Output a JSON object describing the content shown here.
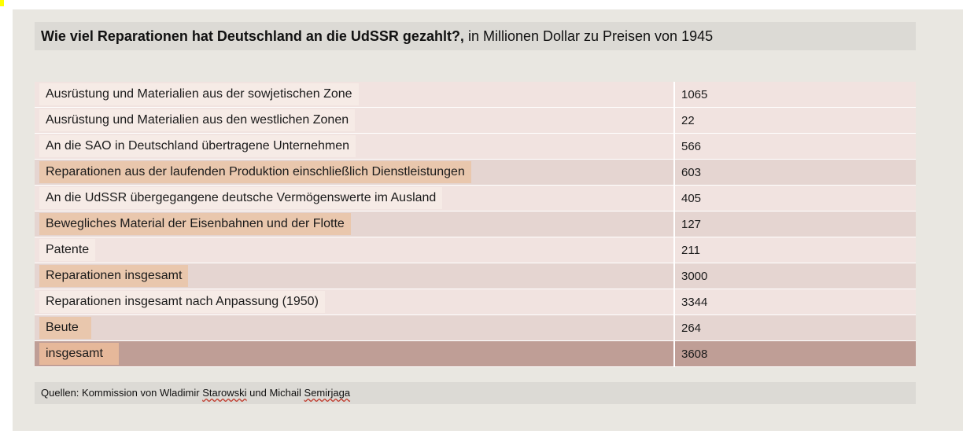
{
  "title": {
    "bold": "Wie viel Reparationen hat Deutschland an die UdSSR gezahlt?,",
    "rest": " in Millionen Dollar zu Preisen von 1945"
  },
  "rows": [
    {
      "label": "Ausrüstung und Materialien aus der sowjetischen Zone",
      "value": "1065"
    },
    {
      "label": "Ausrüstung und Materialien aus den westlichen Zonen",
      "value": "22"
    },
    {
      "label": "An die SAO in Deutschland übertragene Unternehmen",
      "value": "566"
    },
    {
      "label": "Reparationen aus der laufenden Produktion einschließlich Dienstleistungen",
      "value": "603"
    },
    {
      "label": "An die UdSSR übergegangene deutsche Vermögenswerte im Ausland",
      "value": "405"
    },
    {
      "label": "Bewegliches Material der Eisenbahnen und der Flotte",
      "value": "127"
    },
    {
      "label": "Patente",
      "value": "211"
    },
    {
      "label": "Reparationen insgesamt",
      "value": "3000"
    },
    {
      "label": "Reparationen insgesamt nach Anpassung (1950)",
      "value": "3344"
    },
    {
      "label": "Beute",
      "value": "264"
    },
    {
      "label": "insgesamt",
      "value": "3608"
    }
  ],
  "source": {
    "prefix": "Quellen: Kommission von Wladimir ",
    "name1": "Starowski",
    "middle": " und Michail ",
    "name2": "Semirjaga"
  }
}
